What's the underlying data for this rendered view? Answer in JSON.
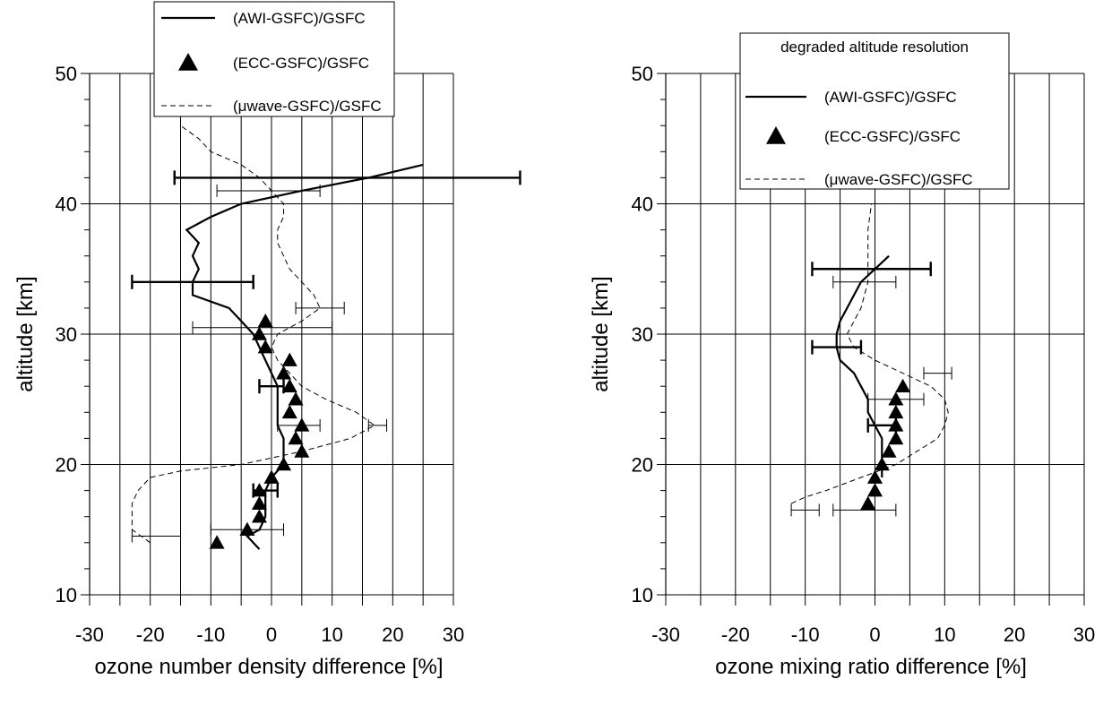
{
  "chart_data": [
    {
      "type": "line",
      "title": "",
      "xlabel": "ozone number density difference [%]",
      "ylabel": "altitude [km]",
      "xlim": [
        -30,
        30
      ],
      "ylim": [
        10,
        50
      ],
      "xticks": [
        "-30",
        "-20",
        "-10",
        "0",
        "10",
        "20",
        "30"
      ],
      "yticks": [
        "10",
        "20",
        "30",
        "40",
        "50"
      ],
      "grid": true,
      "legend_position": "top-center",
      "legend_title": "",
      "series": [
        {
          "name": "(AWI-GSFC)/GSFC",
          "style": "solid",
          "points": [
            [
              -2,
              13.5
            ],
            [
              -4,
              14.5
            ],
            [
              -2,
              15
            ],
            [
              -1,
              16
            ],
            [
              -1,
              17
            ],
            [
              -1,
              18
            ],
            [
              0,
              19
            ],
            [
              2,
              20
            ],
            [
              2,
              21
            ],
            [
              2,
              22
            ],
            [
              1,
              23
            ],
            [
              1,
              24
            ],
            [
              1,
              25
            ],
            [
              1,
              26
            ],
            [
              0,
              27
            ],
            [
              -1,
              28
            ],
            [
              -2,
              29
            ],
            [
              -3,
              30
            ],
            [
              -5,
              31
            ],
            [
              -7,
              32
            ],
            [
              -13,
              33
            ],
            [
              -13,
              34
            ],
            [
              -12,
              35
            ],
            [
              -13,
              36
            ],
            [
              -12,
              37
            ],
            [
              -14,
              38
            ],
            [
              -10,
              39
            ],
            [
              -5,
              40
            ],
            [
              5,
              41
            ],
            [
              16,
              42
            ],
            [
              25,
              43
            ]
          ]
        },
        {
          "name": "(ECC-GSFC)/GSFC",
          "style": "triangle",
          "points": [
            [
              -9,
              14
            ],
            [
              -4,
              15
            ],
            [
              -2,
              16
            ],
            [
              -2,
              17
            ],
            [
              -2,
              18
            ],
            [
              0,
              19
            ],
            [
              2,
              20
            ],
            [
              5,
              21
            ],
            [
              4,
              22
            ],
            [
              5,
              23
            ],
            [
              3,
              24
            ],
            [
              4,
              25
            ],
            [
              3,
              26
            ],
            [
              2,
              27
            ],
            [
              3,
              28
            ],
            [
              -1,
              29
            ],
            [
              -2,
              30
            ],
            [
              -1,
              31
            ]
          ]
        },
        {
          "name": "(μwave-GSFC)/GSFC",
          "style": "dashed",
          "points": [
            [
              -20,
              14
            ],
            [
              -23,
              15
            ],
            [
              -23,
              16
            ],
            [
              -23,
              17
            ],
            [
              -22,
              18
            ],
            [
              -20,
              19
            ],
            [
              -15,
              19.5
            ],
            [
              -5,
              20
            ],
            [
              5,
              21
            ],
            [
              13,
              22
            ],
            [
              17,
              23
            ],
            [
              14,
              24
            ],
            [
              9,
              25
            ],
            [
              5,
              26
            ],
            [
              3,
              27
            ],
            [
              1,
              28
            ],
            [
              0,
              29
            ],
            [
              1,
              30
            ],
            [
              5,
              31
            ],
            [
              8,
              32
            ],
            [
              7,
              33
            ],
            [
              5,
              34
            ],
            [
              3,
              35
            ],
            [
              2,
              36
            ],
            [
              1,
              37
            ],
            [
              1,
              38
            ],
            [
              2,
              39
            ],
            [
              2,
              40
            ],
            [
              0,
              41
            ],
            [
              -2,
              42
            ],
            [
              -5,
              43
            ],
            [
              -10,
              44
            ],
            [
              -12,
              45
            ],
            [
              -15,
              46
            ]
          ]
        }
      ],
      "error_bars": [
        {
          "series": "(AWI-GSFC)/GSFC",
          "y": 42,
          "x_low": -16,
          "x_high": 41
        },
        {
          "series": "(AWI-GSFC)/GSFC",
          "y": 34,
          "x_low": -23,
          "x_high": -3
        },
        {
          "series": "(AWI-GSFC)/GSFC",
          "y": 26,
          "x_low": -2,
          "x_high": 2
        },
        {
          "series": "(AWI-GSFC)/GSFC",
          "y": 18,
          "x_low": -3,
          "x_high": 1
        },
        {
          "series": "(ECC-GSFC)/GSFC",
          "y": 30.5,
          "x_low": -13,
          "x_high": 10
        },
        {
          "series": "(ECC-GSFC)/GSFC",
          "y": 15,
          "x_low": -10,
          "x_high": 2
        },
        {
          "series": "(μwave-GSFC)/GSFC",
          "y": 41,
          "x_low": -9,
          "x_high": 8
        },
        {
          "series": "(μwave-GSFC)/GSFC",
          "y": 32,
          "x_low": 4,
          "x_high": 12
        },
        {
          "series": "(μwave-GSFC)/GSFC",
          "y": 23,
          "x_low": 16,
          "x_high": 19
        },
        {
          "series": "(μwave-GSFC)/GSFC",
          "y": 23,
          "x_low": 1,
          "x_high": 8
        },
        {
          "series": "(μwave-GSFC)/GSFC",
          "y": 14.5,
          "x_low": -23,
          "x_high": -15
        }
      ]
    },
    {
      "type": "line",
      "title": "",
      "xlabel": "ozone mixing ratio difference [%]",
      "ylabel": "altitude [km]",
      "xlim": [
        -30,
        30
      ],
      "ylim": [
        10,
        50
      ],
      "xticks": [
        "-30",
        "-20",
        "-10",
        "0",
        "10",
        "20",
        "30"
      ],
      "yticks": [
        "10",
        "20",
        "30",
        "40",
        "50"
      ],
      "grid": true,
      "legend_position": "top-right",
      "legend_title": "degraded altitude resolution",
      "series": [
        {
          "name": "(AWI-GSFC)/GSFC",
          "style": "solid",
          "points": [
            [
              1,
              19
            ],
            [
              1,
              20
            ],
            [
              1,
              21
            ],
            [
              1,
              22
            ],
            [
              0,
              23
            ],
            [
              -1,
              24
            ],
            [
              -1,
              25
            ],
            [
              -2,
              26
            ],
            [
              -3,
              27
            ],
            [
              -5,
              28
            ],
            [
              -5.5,
              29
            ],
            [
              -5.5,
              30
            ],
            [
              -5,
              31
            ],
            [
              -4,
              32
            ],
            [
              -3,
              33
            ],
            [
              -2,
              34
            ],
            [
              0,
              35
            ],
            [
              2,
              36
            ]
          ]
        },
        {
          "name": "(ECC-GSFC)/GSFC",
          "style": "triangle",
          "points": [
            [
              -1,
              17
            ],
            [
              0,
              18
            ],
            [
              0,
              19
            ],
            [
              1,
              20
            ],
            [
              2,
              21
            ],
            [
              3,
              22
            ],
            [
              3,
              23
            ],
            [
              3,
              24
            ],
            [
              3,
              25
            ],
            [
              4,
              26
            ]
          ]
        },
        {
          "name": "(μwave-GSFC)/GSFC",
          "style": "dashed",
          "points": [
            [
              -12,
              17
            ],
            [
              -10,
              17.5
            ],
            [
              -7,
              18
            ],
            [
              -2,
              19
            ],
            [
              3,
              20
            ],
            [
              6,
              21
            ],
            [
              9,
              22
            ],
            [
              10,
              23
            ],
            [
              10.5,
              24
            ],
            [
              10,
              25
            ],
            [
              8,
              26
            ],
            [
              4,
              27
            ],
            [
              0,
              28
            ],
            [
              -3,
              29
            ],
            [
              -4,
              30
            ],
            [
              -3,
              31
            ],
            [
              -2,
              32
            ],
            [
              -1,
              34
            ],
            [
              -1,
              36
            ],
            [
              -1,
              38
            ],
            [
              -0.5,
              40
            ]
          ]
        }
      ],
      "error_bars": [
        {
          "series": "(AWI-GSFC)/GSFC",
          "y": 35,
          "x_low": -9,
          "x_high": 8
        },
        {
          "series": "(AWI-GSFC)/GSFC",
          "y": 29,
          "x_low": -9,
          "x_high": -2
        },
        {
          "series": "(AWI-GSFC)/GSFC",
          "y": 23,
          "x_low": -1,
          "x_high": 3
        },
        {
          "series": "(μwave-GSFC)/GSFC",
          "y": 34,
          "x_low": -6,
          "x_high": 3
        },
        {
          "series": "(μwave-GSFC)/GSFC",
          "y": 27,
          "x_low": 7,
          "x_high": 11
        },
        {
          "series": "(μwave-GSFC)/GSFC",
          "y": 25,
          "x_low": -1,
          "x_high": 7
        },
        {
          "series": "(μwave-GSFC)/GSFC",
          "y": 16.5,
          "x_low": -12,
          "x_high": -8
        },
        {
          "series": "(μwave-GSFC)/GSFC",
          "y": 16.5,
          "x_low": -6,
          "x_high": 3
        }
      ]
    }
  ]
}
